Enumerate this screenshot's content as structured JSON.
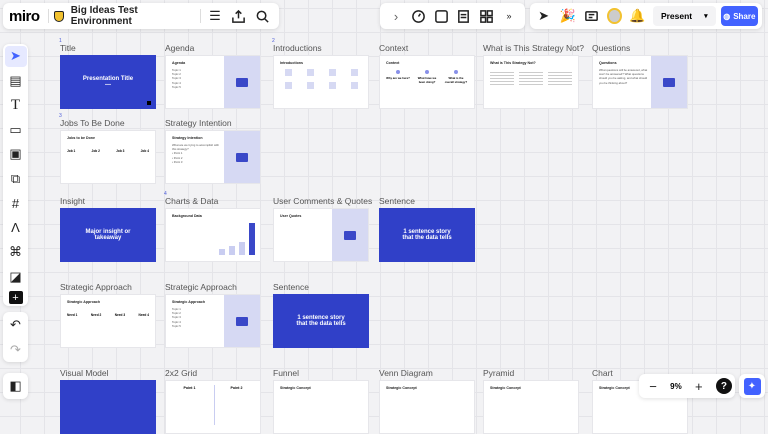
{
  "app": {
    "logo": "miro",
    "board_title": "Big Ideas Test Environment"
  },
  "toolbar_right": {
    "present": "Present",
    "share": "Share"
  },
  "zoom": {
    "level": "9%"
  },
  "frames": [
    {
      "label": "Title",
      "type": "blue",
      "text": "Presentation Title",
      "sub": "—",
      "num": "1"
    },
    {
      "label": "Agenda",
      "type": "list-img",
      "title": "Agenda",
      "items": [
        "Topic 1",
        "Topic 2",
        "Topic 3",
        "Topic 4",
        "Topic 5"
      ]
    },
    {
      "label": "Introductions",
      "type": "intro",
      "title": "Introductions",
      "num": "2"
    },
    {
      "label": "Context",
      "type": "three",
      "title": "Context",
      "items": [
        "Why are we here?",
        "What have we been doing?",
        "What is the overall strategy?"
      ]
    },
    {
      "label": "What is This Strategy Not?",
      "type": "three-text",
      "title": "What is This Strategy Not?"
    },
    {
      "label": "Questions",
      "type": "text-img",
      "title": "Questions",
      "body": "What questions will be answered, what won't be answered? What questions should you be asking, and what should you be thinking about?"
    },
    {
      "label": "Jobs To Be Done",
      "type": "four",
      "title": "Jobs to be Done",
      "items": [
        "Job 1",
        "Job 2",
        "Job 3",
        "Job 4"
      ],
      "num": "3"
    },
    {
      "label": "Strategy Intention",
      "type": "text-img",
      "title": "Strategy Intention",
      "body": "What are we trying to accomplish with this strategy?",
      "items": [
        "Point 1",
        "Point 2",
        "Point 3"
      ]
    },
    {
      "label": "Insight",
      "type": "blue",
      "text": "Major insight or takeaway"
    },
    {
      "label": "Charts & Data",
      "type": "chart",
      "title": "Background Data",
      "num": "4"
    },
    {
      "label": "User Comments & Quotes",
      "type": "quotes-img",
      "title": "User Quotes"
    },
    {
      "label": "Sentence",
      "type": "blue",
      "text": "1 sentence story that the data tells"
    },
    {
      "label": "Strategic Approach",
      "type": "four",
      "title": "Strategic Approach",
      "items": [
        "Need 1",
        "Need 2",
        "Need 3",
        "Need 4"
      ]
    },
    {
      "label": "Strategic Approach",
      "type": "list-img",
      "title": "Strategic Approach",
      "items": [
        "Topic 1",
        "Topic 2",
        "Topic 3",
        "Topic 4",
        "Topic 5"
      ]
    },
    {
      "label": "Sentence",
      "type": "blue",
      "text": "1 sentence story that the data tells"
    },
    {
      "label": "Visual Model",
      "type": "blue",
      "text": ""
    },
    {
      "label": "2x2 Grid",
      "type": "grid",
      "items": [
        "Point 1",
        "Point 2"
      ]
    },
    {
      "label": "Funnel",
      "type": "concept",
      "title": "Strategic Concept"
    },
    {
      "label": "Venn Diagram",
      "type": "concept",
      "title": "Strategic Concept"
    },
    {
      "label": "Pyramid",
      "type": "concept",
      "title": "Strategic Concept"
    },
    {
      "label": "Chart",
      "type": "concept",
      "title": "Strategic Concept"
    }
  ],
  "colors": {
    "accent": "#3040c8",
    "share": "#4262ff",
    "image_placeholder": "#d6d9f3"
  }
}
